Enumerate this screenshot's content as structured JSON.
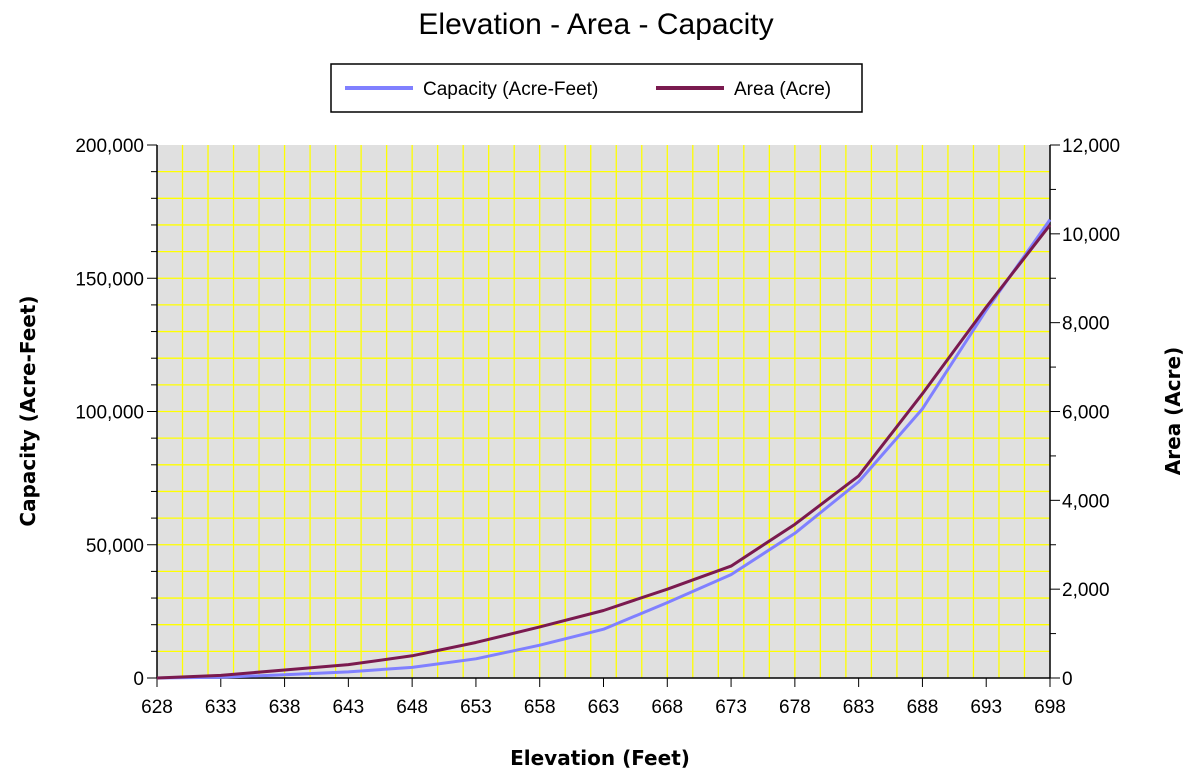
{
  "chart_data": {
    "type": "line",
    "title": "Elevation - Area - Capacity",
    "xlabel": "Elevation (Feet)",
    "ylabel": "Capacity (Acre-Feet)",
    "y2label": "Area (Acre)",
    "xlim": [
      628,
      698
    ],
    "ylim": [
      0,
      200000
    ],
    "y2lim": [
      0,
      12000
    ],
    "x_ticks": [
      "628",
      "633",
      "638",
      "643",
      "648",
      "653",
      "658",
      "663",
      "668",
      "673",
      "678",
      "683",
      "688",
      "693",
      "698"
    ],
    "y_ticks": [
      "0",
      "50,000",
      "100,000",
      "150,000",
      "200,000"
    ],
    "y2_ticks": [
      "0",
      "2,000",
      "4,000",
      "6,000",
      "8,000",
      "10,000",
      "12,000"
    ],
    "grid": true,
    "legend_position": "top-center",
    "plot_background": "#e0e0e0",
    "grid_color": "#ffff00",
    "x": [
      628,
      633,
      638,
      643,
      648,
      653,
      658,
      663,
      668,
      673,
      678,
      683,
      688,
      693,
      698
    ],
    "series": [
      {
        "name": "Capacity (Acre-Feet)",
        "axis": "left",
        "color": "#8080ff",
        "values": [
          0,
          300,
          1200,
          2300,
          4000,
          7200,
          12300,
          18300,
          28300,
          38800,
          54300,
          73600,
          101000,
          138000,
          172000
        ]
      },
      {
        "name": "Area (Acre)",
        "axis": "right",
        "color": "#7a1a4f",
        "values": [
          0,
          60,
          180,
          300,
          500,
          800,
          1150,
          1520,
          2000,
          2520,
          3460,
          4550,
          6400,
          8350,
          10200
        ]
      }
    ]
  }
}
